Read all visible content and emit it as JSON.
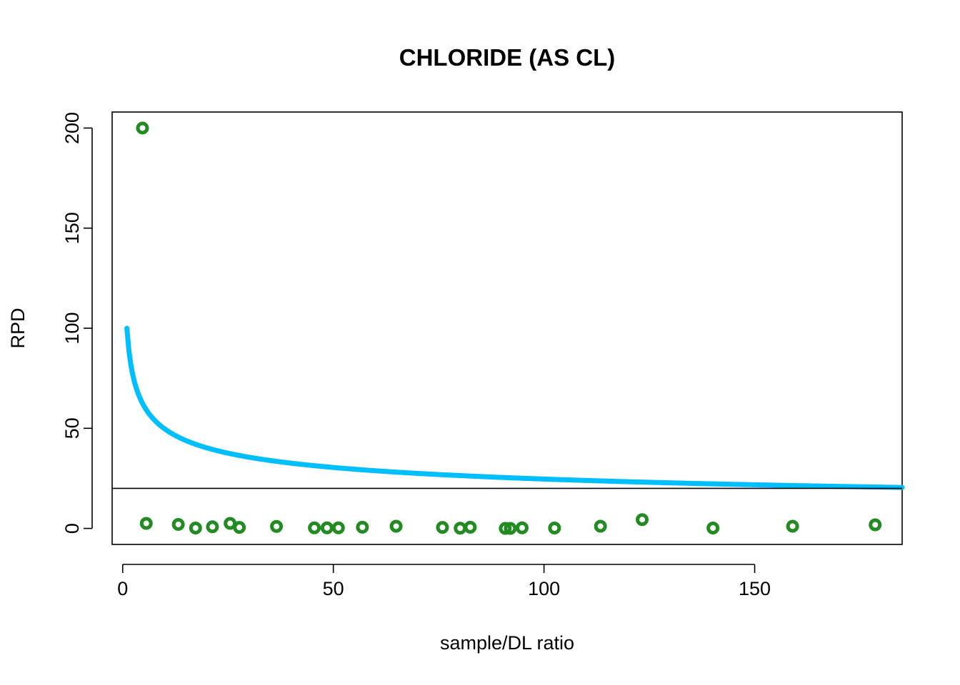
{
  "chart_data": {
    "type": "scatter",
    "title": "CHLORIDE (AS CL)",
    "xlabel": "sample/DL ratio",
    "ylabel": "RPD",
    "xlim": [
      -2.5,
      185
    ],
    "ylim": [
      -8,
      208
    ],
    "x_ticks": [
      0,
      50,
      100,
      150
    ],
    "y_ticks": [
      0,
      50,
      100,
      150,
      200
    ],
    "grid": false,
    "legend": "none",
    "colors": {
      "points": "#228b22",
      "curve": "#00bfff",
      "reference_line": "#000000"
    },
    "points": [
      {
        "x": 4.7,
        "y": 200
      },
      {
        "x": 5.6,
        "y": 2.5
      },
      {
        "x": 13.2,
        "y": 2.0
      },
      {
        "x": 17.3,
        "y": 0.2
      },
      {
        "x": 21.3,
        "y": 0.8
      },
      {
        "x": 25.5,
        "y": 2.5
      },
      {
        "x": 27.7,
        "y": 0.5
      },
      {
        "x": 36.5,
        "y": 1.0
      },
      {
        "x": 45.5,
        "y": 0.3
      },
      {
        "x": 48.5,
        "y": 0.3
      },
      {
        "x": 51.2,
        "y": 0.3
      },
      {
        "x": 56.9,
        "y": 0.6
      },
      {
        "x": 64.9,
        "y": 1.1
      },
      {
        "x": 75.9,
        "y": 0.5
      },
      {
        "x": 80.1,
        "y": 0.1
      },
      {
        "x": 82.5,
        "y": 0.6
      },
      {
        "x": 90.8,
        "y": 0.0
      },
      {
        "x": 92.0,
        "y": 0.0
      },
      {
        "x": 94.8,
        "y": 0.3
      },
      {
        "x": 102.5,
        "y": 0.2
      },
      {
        "x": 113.4,
        "y": 1.1
      },
      {
        "x": 123.3,
        "y": 4.4
      },
      {
        "x": 140.1,
        "y": 0.2
      },
      {
        "x": 159.0,
        "y": 1.1
      },
      {
        "x": 178.6,
        "y": 1.8
      }
    ],
    "curve": {
      "x_start": 1,
      "x_end": 185,
      "samples": [
        {
          "x": 1,
          "y": 100
        },
        {
          "x": 2,
          "y": 81
        },
        {
          "x": 4,
          "y": 65
        },
        {
          "x": 6,
          "y": 57
        },
        {
          "x": 10,
          "y": 48
        },
        {
          "x": 20,
          "y": 39
        },
        {
          "x": 30,
          "y": 34
        },
        {
          "x": 50,
          "y": 30
        },
        {
          "x": 75,
          "y": 27
        },
        {
          "x": 100,
          "y": 25
        },
        {
          "x": 150,
          "y": 22
        },
        {
          "x": 185,
          "y": 20.5
        }
      ]
    },
    "reference_line": {
      "y": 20
    }
  }
}
